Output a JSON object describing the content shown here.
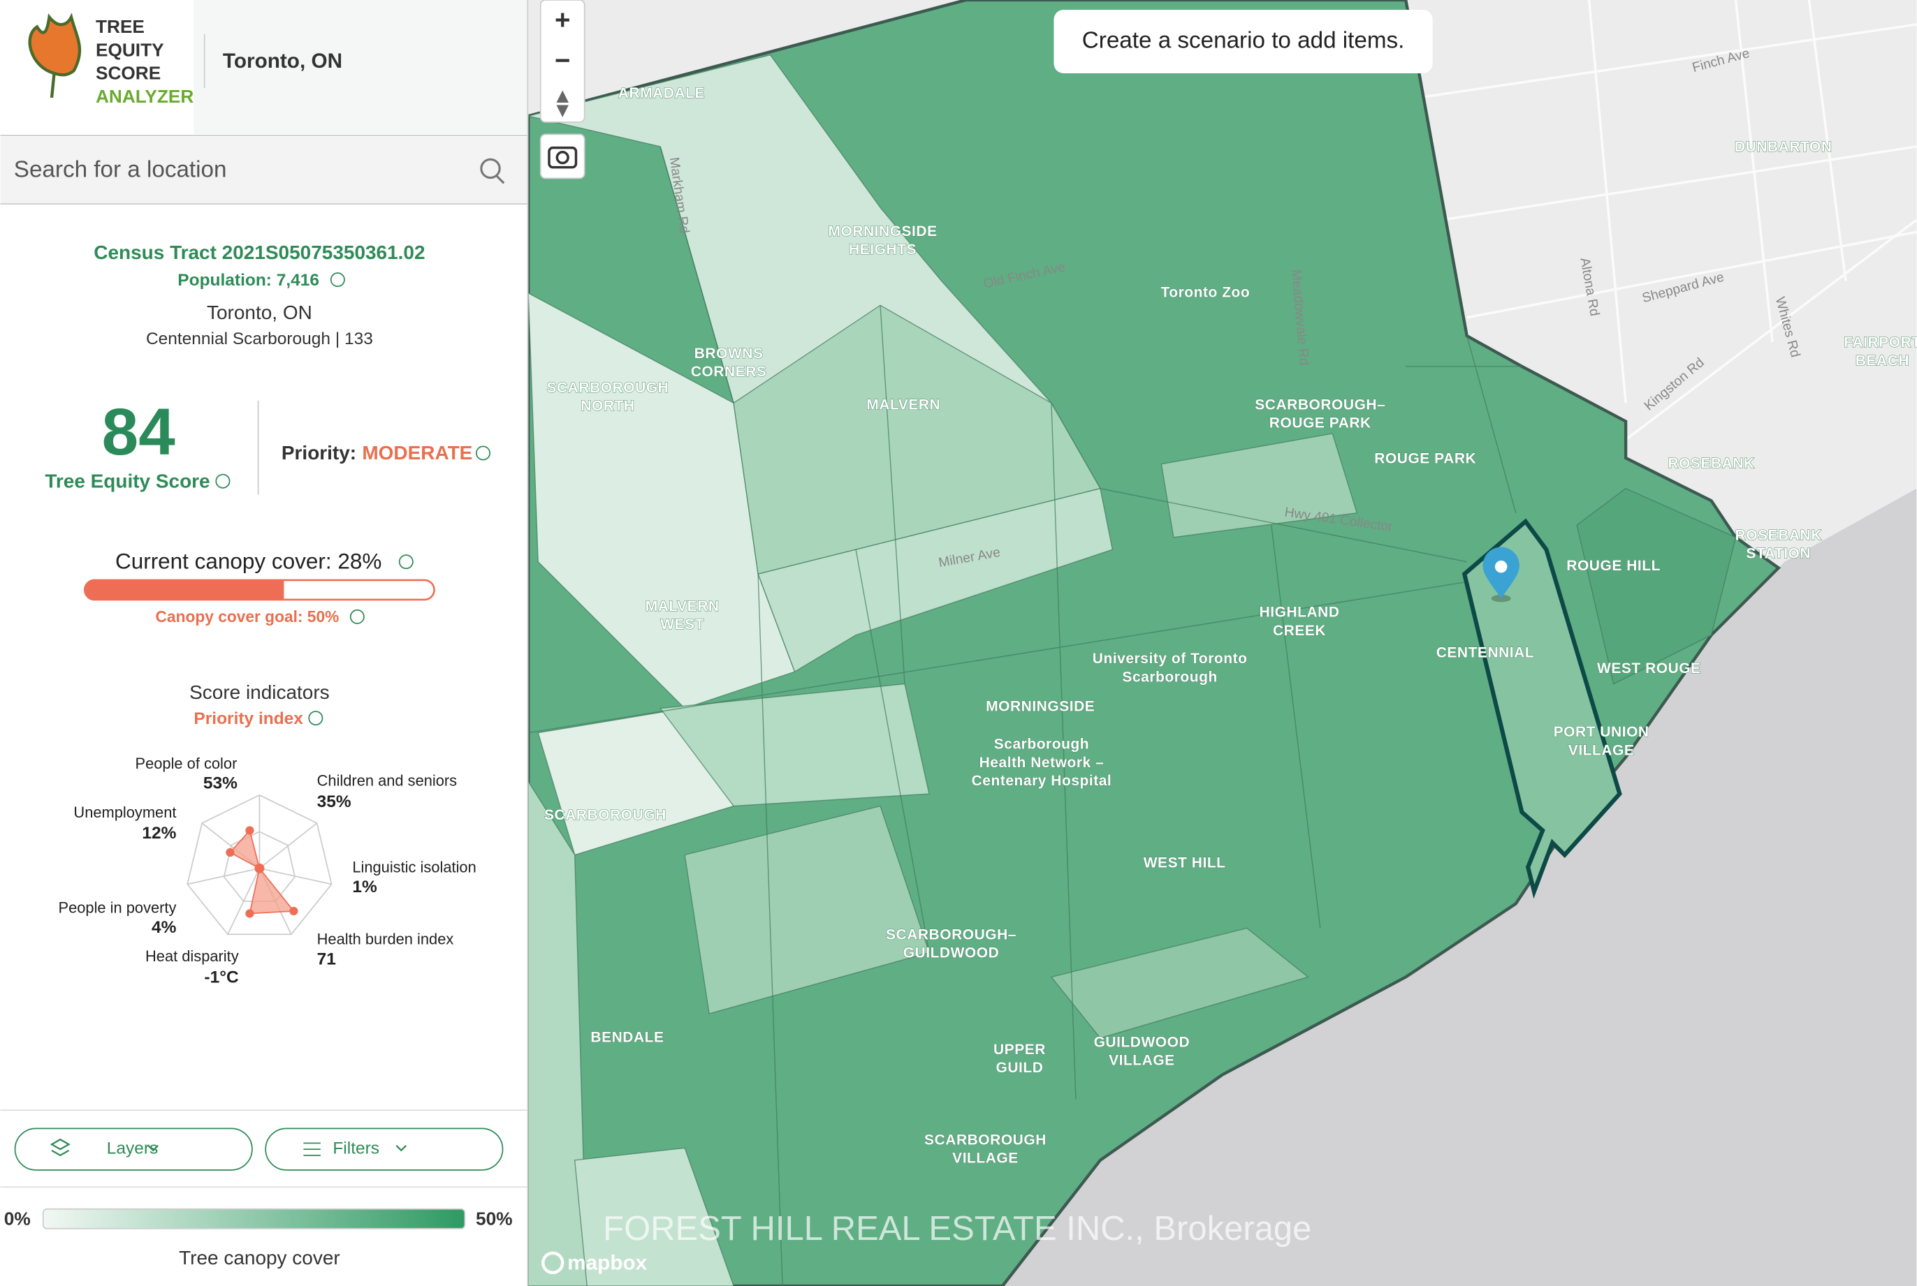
{
  "header": {
    "logo_lines": [
      "TREE",
      "EQUITY",
      "SCORE",
      "ANALYZER"
    ],
    "city": "Toronto, ON"
  },
  "search": {
    "placeholder": "Search for a location"
  },
  "tract": {
    "name": "Census Tract 2021S05075350361.02",
    "population": "Population: 7,416",
    "city": "Toronto, ON",
    "area": "Centennial Scarborough | 133"
  },
  "score": {
    "value": "84",
    "label": "Tree Equity Score",
    "priority_label": "Priority:",
    "priority": "MODERATE"
  },
  "canopy": {
    "current": "Current canopy cover: 28%",
    "goal": "Canopy cover goal: 50%"
  },
  "indicators": {
    "title": "Score indicators",
    "subtitle": "Priority index",
    "items": [
      {
        "label": "People of color",
        "value": "53%"
      },
      {
        "label": "Children and seniors",
        "value": "35%"
      },
      {
        "label": "Linguistic isolation",
        "value": "1%"
      },
      {
        "label": "Health burden index",
        "value": "71"
      },
      {
        "label": "Heat disparity",
        "value": "-1°C"
      },
      {
        "label": "People in poverty",
        "value": "4%"
      },
      {
        "label": "Unemployment",
        "value": "12%"
      }
    ]
  },
  "controls": {
    "layers": "Layers",
    "filters": "Filters"
  },
  "legend": {
    "min": "0%",
    "max": "50%",
    "title": "Tree canopy cover"
  },
  "map": {
    "zoom_in": "+",
    "zoom_out": "−",
    "toast": "Create a scenario to add items.",
    "attribution": "mapbox",
    "watermark": "FOREST HILL REAL ESTATE INC., Brokerage",
    "labels": [
      {
        "lines": [
          "ARMADALE"
        ]
      },
      {
        "lines": [
          "MORNINGSIDE",
          "HEIGHTS"
        ]
      },
      {
        "lines": [
          "BROWNS",
          "CORNERS"
        ]
      },
      {
        "lines": [
          "SCARBOROUGH",
          "NORTH"
        ]
      },
      {
        "lines": [
          "MALVERN"
        ]
      },
      {
        "lines": [
          "Toronto Zoo"
        ]
      },
      {
        "lines": [
          "SCARBOROUGH–",
          "ROUGE PARK"
        ]
      },
      {
        "lines": [
          "ROUGE PARK"
        ]
      },
      {
        "lines": [
          "ROUGE HILL"
        ]
      },
      {
        "lines": [
          "HIGHLAND",
          "CREEK"
        ]
      },
      {
        "lines": [
          "CENTENNIAL"
        ]
      },
      {
        "lines": [
          "WEST ROUGE"
        ]
      },
      {
        "lines": [
          "PORT UNION",
          "VILLAGE"
        ]
      },
      {
        "lines": [
          "MALVERN",
          "WEST"
        ]
      },
      {
        "lines": [
          "University of Toronto",
          "Scarborough"
        ]
      },
      {
        "lines": [
          "MORNINGSIDE"
        ]
      },
      {
        "lines": [
          "Scarborough",
          "Health Network –",
          "Centenary Hospital"
        ]
      },
      {
        "lines": [
          "SCARBOROUGH"
        ]
      },
      {
        "lines": [
          "WEST HILL"
        ]
      },
      {
        "lines": [
          "SCARBOROUGH–",
          "GUILDWOOD"
        ]
      },
      {
        "lines": [
          "BENDALE"
        ]
      },
      {
        "lines": [
          "UPPER",
          "GUILD"
        ]
      },
      {
        "lines": [
          "GUILDWOOD",
          "VILLAGE"
        ]
      },
      {
        "lines": [
          "SCARBOROUGH",
          "VILLAGE"
        ]
      },
      {
        "lines": [
          "DUNBARTON"
        ]
      },
      {
        "lines": [
          "ROSEBANK"
        ]
      },
      {
        "lines": [
          "ROSEBANK",
          "STATION"
        ]
      },
      {
        "lines": [
          "FAIRPORT",
          "BEACH"
        ]
      }
    ],
    "streets": [
      "Finch Ave",
      "Sheppard Ave",
      "Kingston Rd",
      "Milner Ave",
      "Old Finch Ave",
      "Hwy 401 Collector",
      "Markham Rd",
      "Meadowvale Rd",
      "Altona Rd",
      "Whites Rd"
    ]
  }
}
